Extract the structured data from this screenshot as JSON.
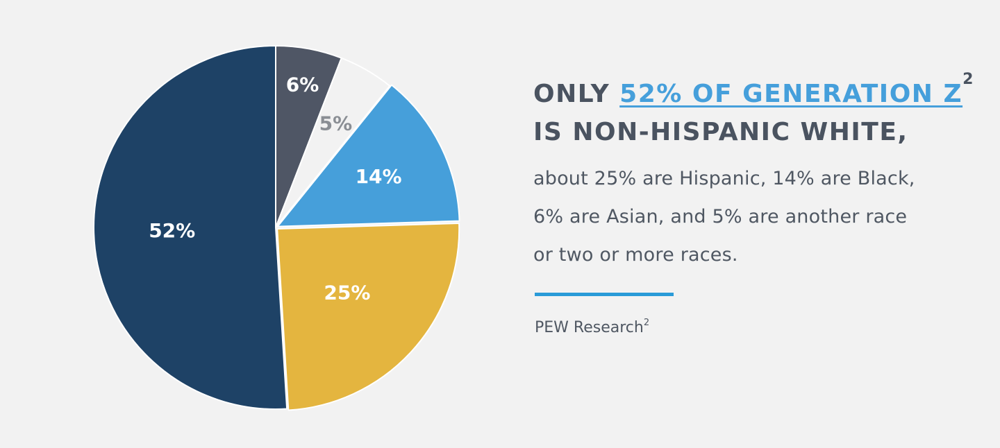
{
  "chart_data": {
    "type": "pie",
    "slices": [
      {
        "label": "6%",
        "value": 6,
        "color": "#4f5665",
        "label_color": "#ffffff",
        "exploded": false
      },
      {
        "label": "5%",
        "value": 5,
        "color": "#f2f2f2",
        "label_color": "#8a8e94",
        "exploded": false
      },
      {
        "label": "14%",
        "value": 14,
        "color": "#469fda",
        "label_color": "#ffffff",
        "exploded": true
      },
      {
        "label": "25%",
        "value": 25,
        "color": "#e4b53f",
        "label_color": "#ffffff",
        "exploded": true
      },
      {
        "label": "52%",
        "value": 52,
        "color": "#1e4266",
        "label_color": "#ffffff",
        "exploded": false
      }
    ],
    "start": "12 o'clock",
    "direction": "clockwise"
  },
  "headline": {
    "part1": "ONLY ",
    "highlight": "52% OF GENERATION Z",
    "sup": "2",
    "part2": " IS NON-HISPANIC WHITE,"
  },
  "body": "about 25% are Hispanic, 14% are Black, 6% are Asian, and 5% are another race or two or more races.",
  "source": {
    "text": "PEW Research",
    "sup": "2"
  },
  "colors": {
    "background": "#f2f2f2",
    "heading": "#4a5360",
    "accent": "#459fdb",
    "divider": "#2a9bd8"
  }
}
